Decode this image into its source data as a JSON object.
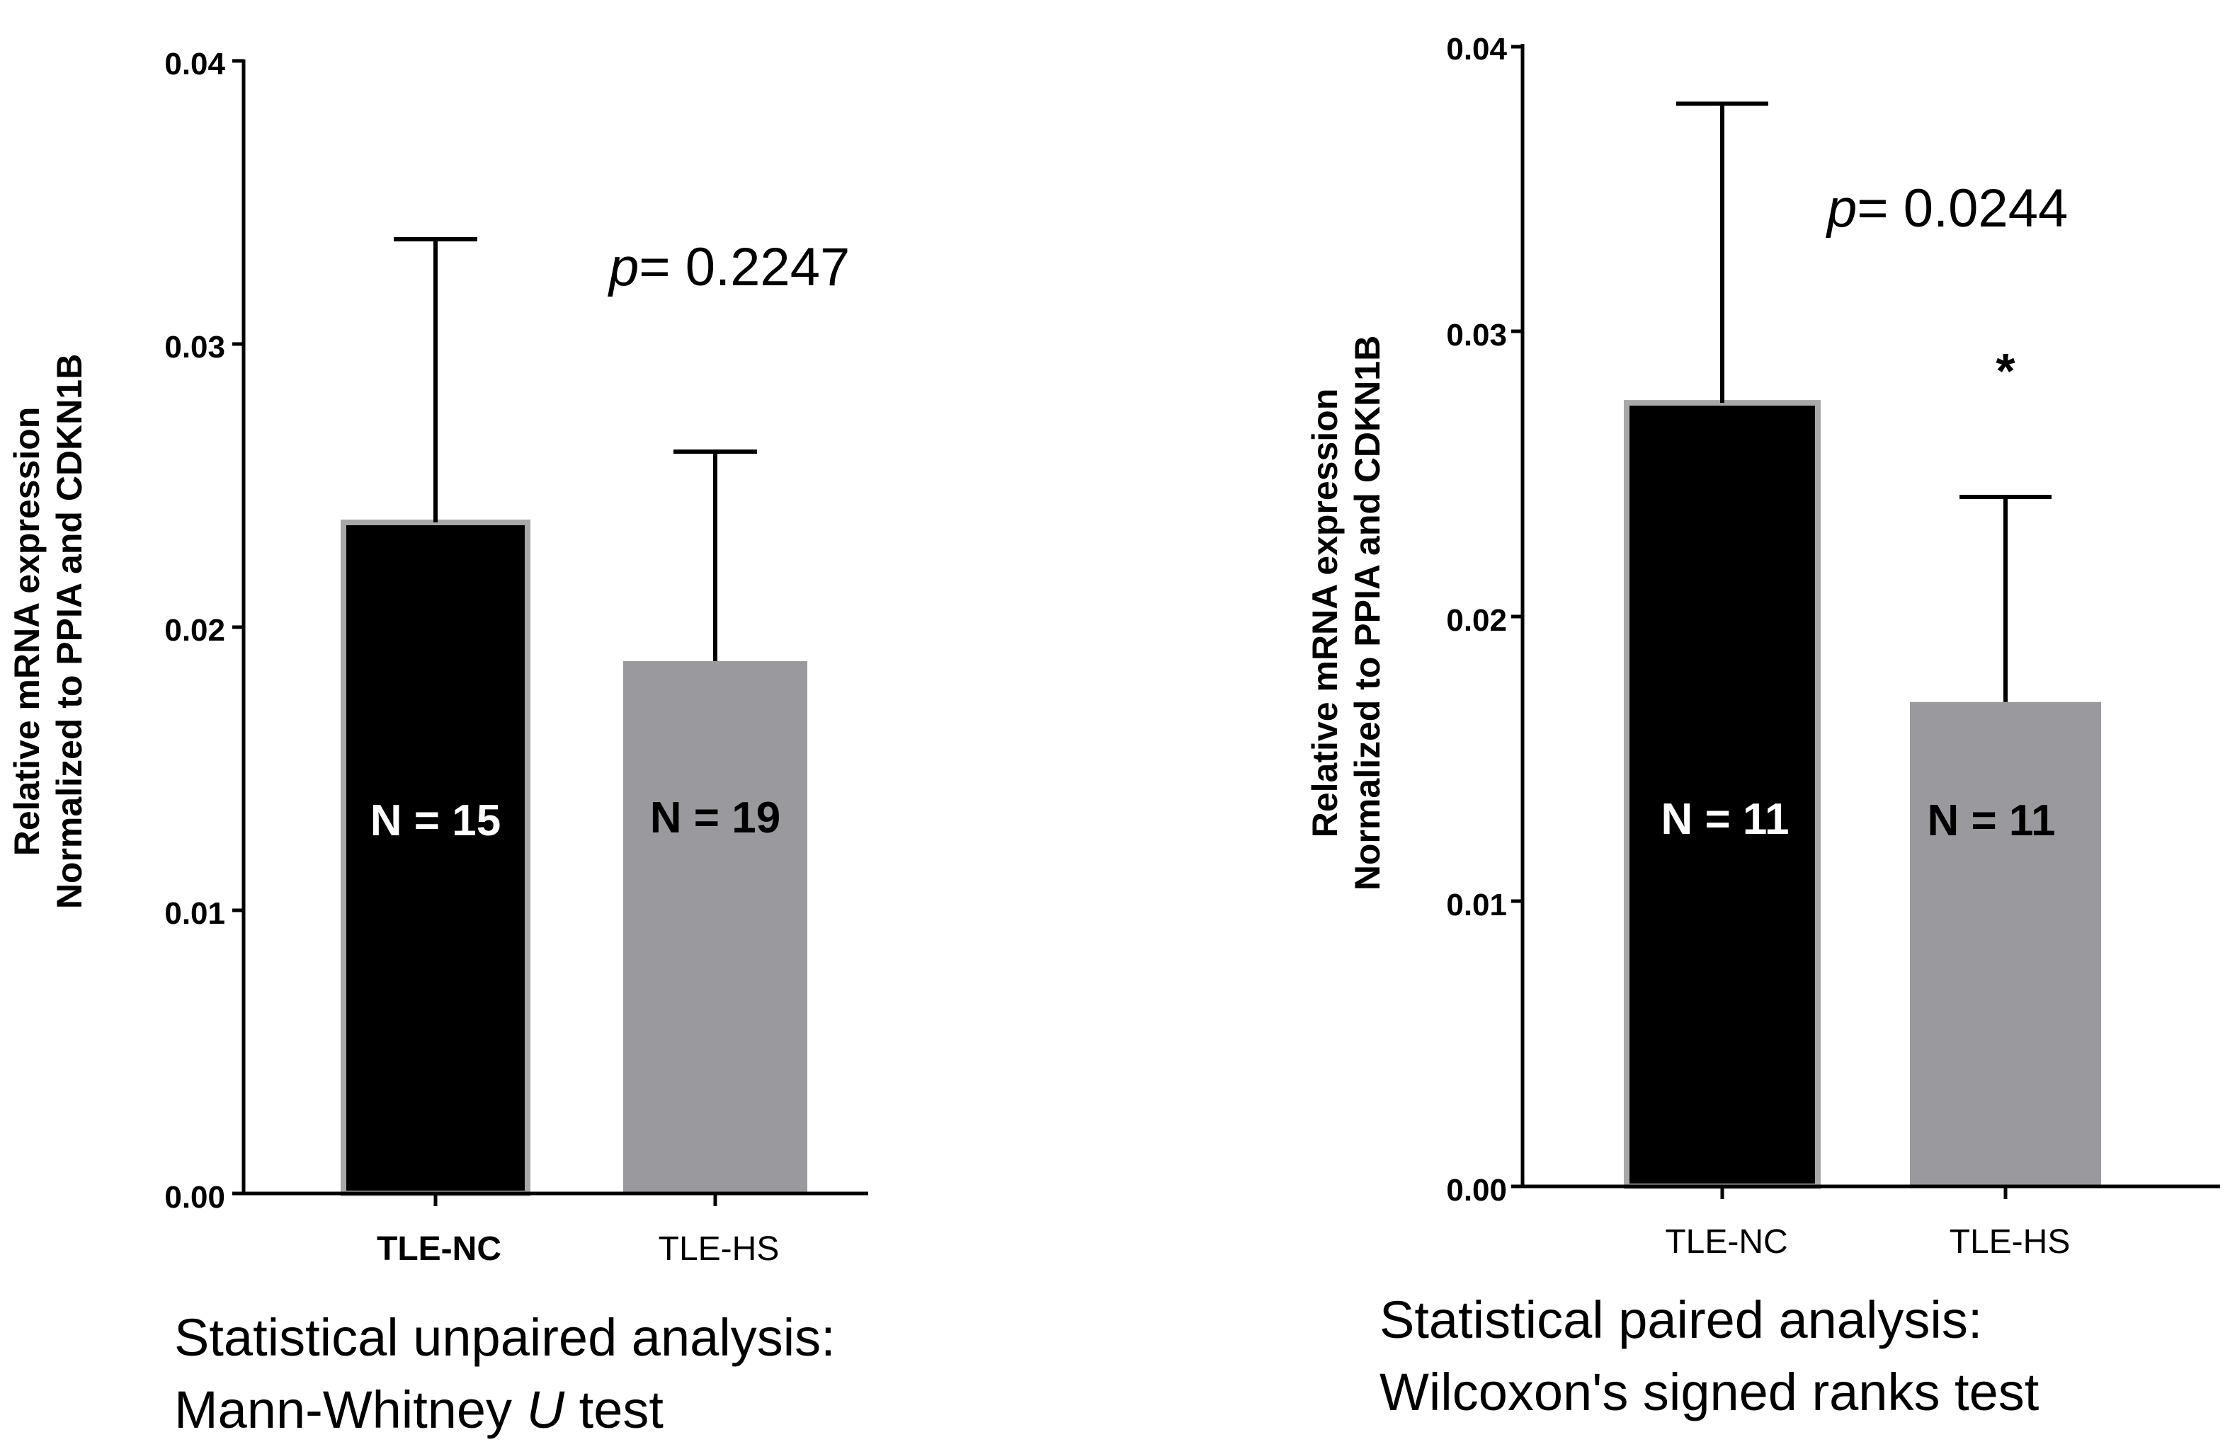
{
  "chart_data": [
    {
      "type": "bar",
      "ylabel": [
        "Relative mRNA expression",
        "Normalized to PPIA and CDKN1B"
      ],
      "ylim": [
        0,
        0.04
      ],
      "yticks": [
        "0.00",
        "0.01",
        "0.02",
        "0.03",
        "0.04"
      ],
      "categories": [
        "TLE-NC",
        "TLE-HS"
      ],
      "values": [
        0.0237,
        0.0188
      ],
      "error_upper": [
        0.0337,
        0.0262
      ],
      "colors": [
        "#000000",
        "#9a9a9e"
      ],
      "bar_labels": [
        "N = 15",
        "N = 19"
      ],
      "bar_label_colors": [
        "#ffffff",
        "#000000"
      ],
      "p_prefix": "p",
      "p_value": "= 0.2247",
      "caption": [
        "Statistical unpaired analysis:",
        "Mann-Whitney ",
        "U",
        " test"
      ]
    },
    {
      "type": "bar",
      "ylabel": [
        "Relative mRNA expression",
        "Normalized to PPIA and CDKN1B"
      ],
      "ylim": [
        0,
        0.04
      ],
      "yticks": [
        "0.00",
        "0.01",
        "0.02",
        "0.03",
        "0.04"
      ],
      "categories": [
        "TLE-NC",
        "TLE-HS"
      ],
      "values": [
        0.0275,
        0.017
      ],
      "error_upper": [
        0.038,
        0.0242
      ],
      "colors": [
        "#000000",
        "#9a9a9e"
      ],
      "bar_labels": [
        "N = 11",
        "N = 11"
      ],
      "bar_label_colors": [
        "#ffffff",
        "#000000"
      ],
      "p_prefix": "p",
      "p_value": "= 0.0244",
      "significance": "*",
      "caption": [
        "Statistical paired analysis:",
        "Wilcoxon's signed ranks test"
      ]
    }
  ]
}
